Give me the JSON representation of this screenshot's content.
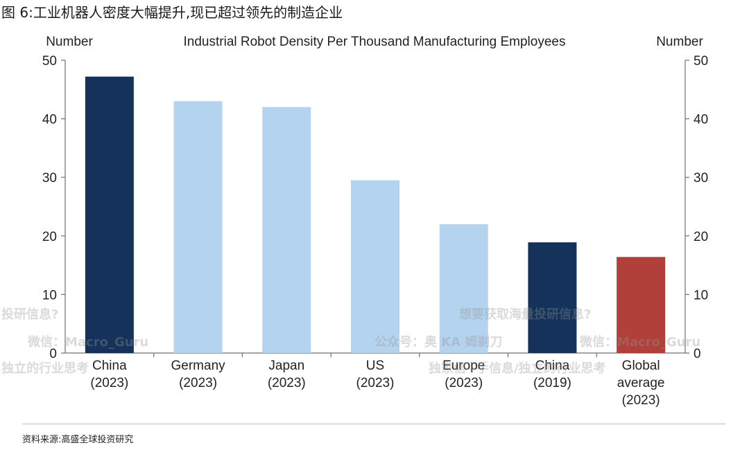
{
  "figure_title": "图 6:工业机器人密度大幅提升,现已超过领先的制造企业",
  "source": "资料来源:高盛全球投资研究",
  "watermarks": [
    "投研信息?",
    "想要获取海量投研信息?",
    "微信：Macro_Guru",
    "公众号：奥 KA 姆剃刀",
    "微信：Macro_Guru",
    "独立的行业思考",
    "独家信--手信息/独立的行业思考"
  ],
  "chart_data": {
    "type": "bar",
    "title": "Industrial Robot Density Per Thousand Manufacturing Employees",
    "ylabel_left": "Number",
    "ylabel_right": "Number",
    "ylim": [
      0,
      50
    ],
    "yticks": [
      "0",
      "10",
      "20",
      "30",
      "40",
      "50"
    ],
    "categories": [
      [
        "China",
        "(2023)"
      ],
      [
        "Germany",
        "(2023)"
      ],
      [
        "Japan",
        "(2023)"
      ],
      [
        "US",
        "(2023)"
      ],
      [
        "Europe",
        "(2023)"
      ],
      [
        "China",
        "(2019)"
      ],
      [
        "Global",
        "average",
        "(2023)"
      ]
    ],
    "values": [
      47.2,
      43.0,
      42.0,
      29.5,
      22.0,
      18.9,
      16.4
    ],
    "colors": [
      "#14325a",
      "#b4d3ee",
      "#b4d3ee",
      "#b4d3ee",
      "#b4d3ee",
      "#14325a",
      "#b1403a"
    ],
    "axis_color": "#6f6f6f"
  }
}
